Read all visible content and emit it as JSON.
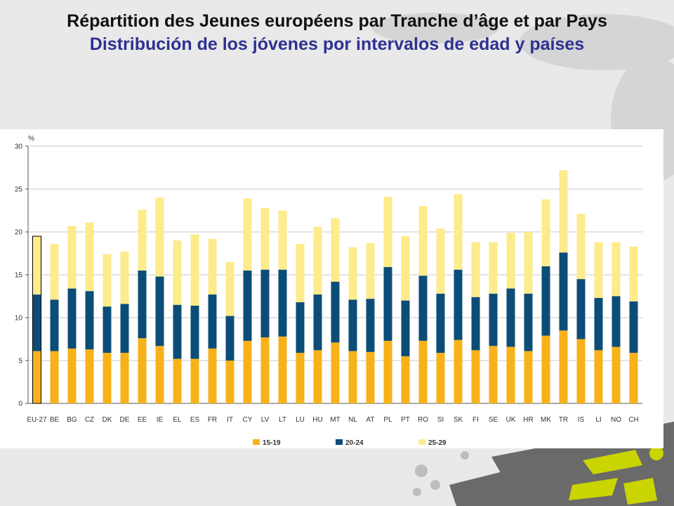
{
  "title_fr": "Répartition des Jeunes européens par Tranche d’âge et par Pays",
  "title_es": "Distribución de los jóvenes por intervalos de edad y países",
  "colors": {
    "title_fr": "#111111",
    "title_es": "#2e3192",
    "background": "#e9e9e9",
    "panel": "#ffffff",
    "grid": "#c8c8c8",
    "logo": "#c9d400"
  },
  "chart_data": {
    "type": "bar",
    "stacked": true,
    "ylabel": "%",
    "ylim": [
      0,
      30
    ],
    "yticks": [
      0,
      5,
      10,
      15,
      20,
      25,
      30
    ],
    "grid": true,
    "legend_position": "bottom",
    "categories": [
      "EU-27",
      "BE",
      "BG",
      "CZ",
      "DK",
      "DE",
      "EE",
      "IE",
      "EL",
      "ES",
      "FR",
      "IT",
      "CY",
      "LV",
      "LT",
      "LU",
      "HU",
      "MT",
      "NL",
      "AT",
      "PL",
      "PT",
      "RO",
      "SI",
      "SK",
      "FI",
      "SE",
      "UK",
      "HR",
      "MK",
      "TR",
      "IS",
      "LI",
      "NO",
      "CH"
    ],
    "highlighted_category": "EU-27",
    "series": [
      {
        "name": "15-19",
        "color": "#f7b21a",
        "values": [
          6.1,
          6.1,
          6.4,
          6.3,
          5.9,
          5.9,
          7.6,
          6.7,
          5.2,
          5.2,
          6.4,
          5.0,
          7.3,
          7.7,
          7.8,
          5.9,
          6.2,
          7.1,
          6.1,
          6.0,
          7.3,
          5.5,
          7.3,
          5.9,
          7.4,
          6.2,
          6.7,
          6.6,
          6.1,
          7.9,
          8.5,
          7.5,
          6.2,
          6.6,
          5.9
        ]
      },
      {
        "name": "20-24",
        "color": "#0c4d77",
        "values": [
          6.6,
          6.0,
          7.0,
          6.8,
          5.4,
          5.7,
          7.9,
          8.1,
          6.3,
          6.2,
          6.3,
          5.2,
          8.2,
          7.9,
          7.8,
          5.9,
          6.5,
          7.1,
          6.0,
          6.2,
          8.6,
          6.5,
          7.6,
          6.9,
          8.2,
          6.2,
          6.1,
          6.8,
          6.7,
          8.1,
          9.1,
          7.0,
          6.1,
          5.9,
          6.0
        ]
      },
      {
        "name": "25-29",
        "color": "#fdeb8c",
        "values": [
          6.8,
          6.5,
          7.3,
          8.0,
          6.1,
          6.1,
          7.1,
          9.2,
          7.5,
          8.3,
          6.5,
          6.3,
          8.4,
          7.2,
          6.9,
          6.8,
          7.9,
          7.4,
          6.1,
          6.5,
          8.2,
          7.5,
          8.1,
          7.6,
          8.8,
          6.4,
          6.0,
          6.5,
          7.2,
          7.8,
          9.6,
          7.6,
          6.5,
          6.3,
          6.4
        ]
      }
    ]
  }
}
